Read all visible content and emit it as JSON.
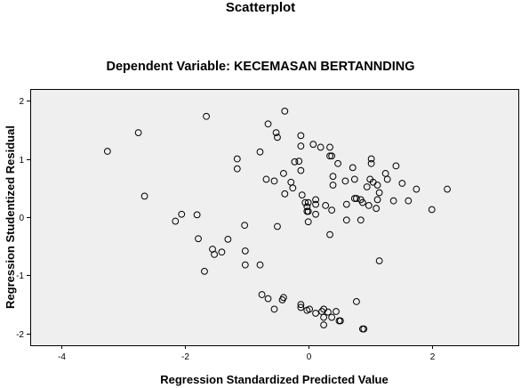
{
  "chart_data": {
    "type": "scatter",
    "title": "Scatterplot",
    "subtitle": "Dependent Variable: KECEMASAN BERTANNDING",
    "xlabel": "Regression Standardized Predicted Value",
    "ylabel": "Regression Studentized Residual",
    "xlim": [
      -4.5,
      3.4
    ],
    "ylim": [
      -2.2,
      2.2
    ],
    "xticks": [
      -4,
      -2,
      0,
      2
    ],
    "yticks": [
      2,
      1,
      0,
      -1,
      -2
    ],
    "grid": false,
    "plot_background": "#efefef",
    "marker_color": "#000000",
    "points": [
      [
        -3.25,
        1.13
      ],
      [
        -2.75,
        1.45
      ],
      [
        -2.65,
        0.36
      ],
      [
        -2.15,
        -0.07
      ],
      [
        -2.05,
        0.05
      ],
      [
        -1.8,
        0.04
      ],
      [
        -1.78,
        -0.37
      ],
      [
        -1.68,
        -0.93
      ],
      [
        -1.65,
        1.73
      ],
      [
        -1.55,
        -0.55
      ],
      [
        -1.52,
        -0.64
      ],
      [
        -1.4,
        -0.6
      ],
      [
        -1.3,
        -0.38
      ],
      [
        -1.15,
        1.0
      ],
      [
        -1.15,
        0.83
      ],
      [
        -1.03,
        -0.14
      ],
      [
        -1.02,
        -0.58
      ],
      [
        -1.02,
        -0.82
      ],
      [
        -0.78,
        -0.82
      ],
      [
        -0.78,
        1.12
      ],
      [
        -0.75,
        -1.33
      ],
      [
        -0.68,
        0.65
      ],
      [
        -0.65,
        -1.4
      ],
      [
        -0.65,
        1.6
      ],
      [
        -0.55,
        0.62
      ],
      [
        -0.52,
        1.45
      ],
      [
        -0.5,
        1.37
      ],
      [
        -0.5,
        -0.16
      ],
      [
        -0.55,
        -1.58
      ],
      [
        -0.42,
        -1.42
      ],
      [
        -0.4,
        -1.38
      ],
      [
        -0.38,
        1.82
      ],
      [
        -0.38,
        0.4
      ],
      [
        -0.4,
        0.75
      ],
      [
        -0.28,
        0.6
      ],
      [
        -0.25,
        0.5
      ],
      [
        -0.22,
        0.95
      ],
      [
        -0.15,
        0.96
      ],
      [
        -0.12,
        1.4
      ],
      [
        -0.12,
        1.22
      ],
      [
        -0.12,
        0.8
      ],
      [
        -0.12,
        -1.55
      ],
      [
        -0.12,
        -1.5
      ],
      [
        -0.1,
        0.38
      ],
      [
        -0.05,
        0.25
      ],
      [
        -0.02,
        0.18
      ],
      [
        -0.02,
        0.1
      ],
      [
        0.0,
        0.1
      ],
      [
        0.0,
        0.25
      ],
      [
        0.0,
        -0.08
      ],
      [
        -0.02,
        -1.6
      ],
      [
        0.02,
        -1.58
      ],
      [
        0.08,
        1.25
      ],
      [
        0.12,
        0.3
      ],
      [
        0.12,
        0.22
      ],
      [
        0.12,
        0.05
      ],
      [
        0.12,
        -1.65
      ],
      [
        0.2,
        1.2
      ],
      [
        0.22,
        -1.62
      ],
      [
        0.25,
        -1.58
      ],
      [
        0.25,
        -1.72
      ],
      [
        0.25,
        -1.85
      ],
      [
        0.28,
        0.2
      ],
      [
        0.32,
        -1.63
      ],
      [
        0.35,
        1.2
      ],
      [
        0.35,
        1.05
      ],
      [
        0.38,
        1.05
      ],
      [
        0.38,
        0.12
      ],
      [
        0.35,
        -0.3
      ],
      [
        0.4,
        0.7
      ],
      [
        0.4,
        0.55
      ],
      [
        0.38,
        -1.72
      ],
      [
        0.45,
        -1.62
      ],
      [
        0.48,
        0.92
      ],
      [
        0.5,
        -1.78
      ],
      [
        0.52,
        -1.78
      ],
      [
        0.6,
        0.62
      ],
      [
        0.62,
        0.22
      ],
      [
        0.62,
        -0.05
      ],
      [
        0.72,
        0.85
      ],
      [
        0.75,
        0.65
      ],
      [
        0.75,
        0.32
      ],
      [
        0.78,
        0.32
      ],
      [
        0.78,
        -1.45
      ],
      [
        0.85,
        0.3
      ],
      [
        0.85,
        -0.05
      ],
      [
        0.88,
        0.25
      ],
      [
        0.88,
        -1.92
      ],
      [
        0.9,
        -1.92
      ],
      [
        0.95,
        0.52
      ],
      [
        0.98,
        0.2
      ],
      [
        1.0,
        0.65
      ],
      [
        1.02,
        0.92
      ],
      [
        1.02,
        1.0
      ],
      [
        1.05,
        0.6
      ],
      [
        1.1,
        0.15
      ],
      [
        1.12,
        0.3
      ],
      [
        1.12,
        0.55
      ],
      [
        1.15,
        -0.75
      ],
      [
        1.15,
        0.42
      ],
      [
        1.25,
        0.75
      ],
      [
        1.28,
        0.65
      ],
      [
        1.38,
        0.28
      ],
      [
        1.42,
        0.88
      ],
      [
        1.52,
        0.58
      ],
      [
        1.62,
        0.28
      ],
      [
        1.75,
        0.48
      ],
      [
        2.0,
        0.13
      ],
      [
        2.25,
        0.48
      ]
    ]
  }
}
